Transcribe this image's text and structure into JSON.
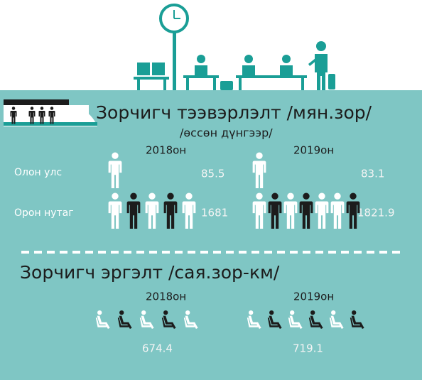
{
  "section1": {
    "title": "Зорчигч тээвэрлэлт /мян.зор/",
    "subtitle": "/өссөн дүнгээр/",
    "years": [
      "2018он",
      "2019он"
    ],
    "rows": [
      {
        "label": "Олон улс",
        "values": [
          85.5,
          83.1
        ]
      },
      {
        "label": "Орон нутаг",
        "values": [
          1681,
          1821.9
        ]
      }
    ]
  },
  "section2": {
    "title": "Зорчигч эргэлт /сая.зор-км/",
    "years": [
      "2018он",
      "2019он"
    ],
    "values": [
      674.4,
      719.1
    ]
  }
}
